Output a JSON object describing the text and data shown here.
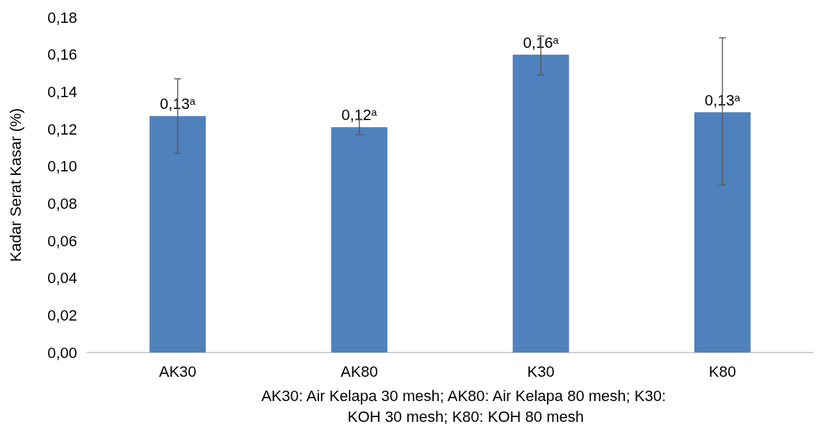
{
  "chart_data": {
    "type": "bar",
    "ylabel": "Kadar Serat Kasar (%)",
    "categories": [
      "AK30",
      "AK80",
      "K30",
      "K80"
    ],
    "values": [
      0.127,
      0.121,
      0.16,
      0.129
    ],
    "color": "#4f81bd",
    "errors": [
      [
        0.107,
        0.147
      ],
      [
        0.117,
        0.125
      ],
      [
        0.149,
        0.17
      ],
      [
        0.09,
        0.169
      ]
    ],
    "value_labels": [
      "0,13$^{a}$",
      "0,12$^{a}$",
      "0,16$^{a}$",
      "0,13$^{a}$"
    ],
    "ylim": [
      0,
      0.18
    ],
    "yticks": [
      {
        "value": 0,
        "label": "0,00"
      },
      {
        "value": 0.02,
        "label": "0,02"
      },
      {
        "value": 0.04,
        "label": "0,04"
      },
      {
        "value": 0.06,
        "label": "0,06"
      },
      {
        "value": 0.08,
        "label": "0,08"
      },
      {
        "value": 0.1,
        "label": "0,10"
      },
      {
        "value": 0.12,
        "label": "0,12"
      },
      {
        "value": 0.14,
        "label": "0,14"
      },
      {
        "value": 0.16,
        "label": "0,16"
      },
      {
        "value": 0.18,
        "label": "0,18"
      }
    ],
    "grid": false,
    "annotations": [
      "AK30: Air Kelapa 30 mesh; AK80: Air Kelapa 80 mesh; K30: KOH 30 mesh; K80: KOH 80 mesh"
    ]
  }
}
